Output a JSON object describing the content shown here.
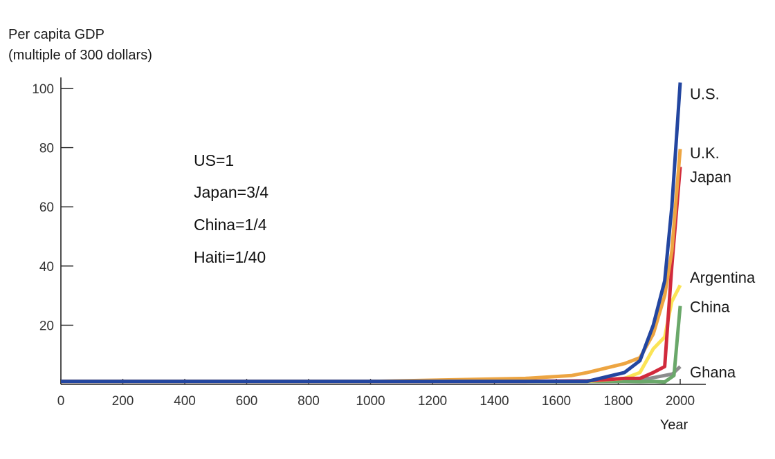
{
  "chart_data": {
    "type": "line",
    "ylabel_line1": "Per capita GDP",
    "ylabel_line2": "(multiple of 300 dollars)",
    "xlabel": "Year",
    "xlim": [
      0,
      2100
    ],
    "ylim": [
      0,
      100
    ],
    "x_ticks": [
      0,
      200,
      400,
      600,
      800,
      1000,
      1200,
      1400,
      1600,
      1800,
      2000
    ],
    "x_tick_labels": [
      "0",
      "200",
      "400",
      "600",
      "800",
      "1000",
      "1200",
      "1400",
      "1600",
      "1800",
      "2000"
    ],
    "y_ticks": [
      20,
      40,
      60,
      80,
      100
    ],
    "y_tick_labels": [
      "20",
      "40",
      "60",
      "80",
      "100"
    ],
    "grid": false,
    "annotations": [
      "US=1",
      "Japan=3/4",
      "China=1/4",
      "Haiti=1/40"
    ],
    "series": [
      {
        "name": "Ghana",
        "color": "#8c8c8c",
        "label_value": 4,
        "points": [
          [
            0,
            1
          ],
          [
            1000,
            1
          ],
          [
            1500,
            1
          ],
          [
            1700,
            1
          ],
          [
            1800,
            1
          ],
          [
            1870,
            1.5
          ],
          [
            1900,
            2
          ],
          [
            1950,
            3
          ],
          [
            1975,
            3.5
          ],
          [
            2000,
            6
          ]
        ]
      },
      {
        "name": "China",
        "color": "#6aa86a",
        "label_value": 26,
        "points": [
          [
            0,
            1
          ],
          [
            1000,
            1
          ],
          [
            1500,
            1
          ],
          [
            1700,
            1
          ],
          [
            1820,
            1
          ],
          [
            1870,
            0.9
          ],
          [
            1913,
            1
          ],
          [
            1950,
            0.8
          ],
          [
            1980,
            3
          ],
          [
            2000,
            26.5
          ]
        ]
      },
      {
        "name": "Argentina",
        "color": "#fbe456",
        "label_value": 36,
        "points": [
          [
            0,
            1
          ],
          [
            1000,
            1
          ],
          [
            1500,
            1
          ],
          [
            1700,
            1
          ],
          [
            1820,
            2
          ],
          [
            1870,
            4
          ],
          [
            1913,
            12
          ],
          [
            1950,
            16
          ],
          [
            1973,
            28
          ],
          [
            2000,
            33.5
          ]
        ]
      },
      {
        "name": "Japan",
        "color": "#d12a3c",
        "label_value": 70,
        "points": [
          [
            0,
            1
          ],
          [
            1000,
            1
          ],
          [
            1500,
            1
          ],
          [
            1700,
            1.2
          ],
          [
            1820,
            2
          ],
          [
            1870,
            2
          ],
          [
            1913,
            4
          ],
          [
            1950,
            6
          ],
          [
            1973,
            40
          ],
          [
            2000,
            73.5
          ]
        ]
      },
      {
        "name": "U.K.",
        "color": "#eda542",
        "label_value": 78,
        "points": [
          [
            0,
            1
          ],
          [
            1000,
            1
          ],
          [
            1500,
            2
          ],
          [
            1650,
            3
          ],
          [
            1700,
            4
          ],
          [
            1820,
            7
          ],
          [
            1870,
            9
          ],
          [
            1913,
            17
          ],
          [
            1950,
            30
          ],
          [
            1973,
            45
          ],
          [
            2000,
            79.5
          ]
        ]
      },
      {
        "name": "U.S.",
        "color": "#2346a0",
        "label_value": 98,
        "points": [
          [
            0,
            1
          ],
          [
            1000,
            1
          ],
          [
            1500,
            1
          ],
          [
            1700,
            1
          ],
          [
            1820,
            4
          ],
          [
            1870,
            8
          ],
          [
            1913,
            20
          ],
          [
            1950,
            35
          ],
          [
            1973,
            60
          ],
          [
            2000,
            102
          ]
        ]
      }
    ]
  }
}
